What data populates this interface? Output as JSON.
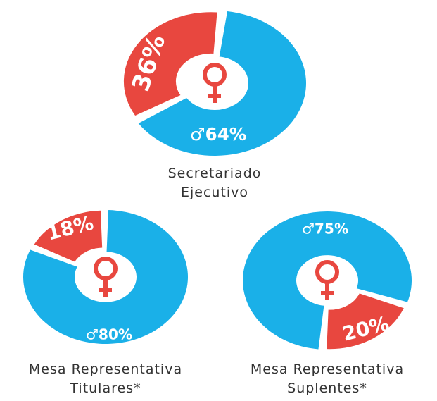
{
  "chart_data": [
    {
      "type": "pie",
      "title": [
        "Secretariado",
        "Ejecutivo"
      ],
      "values": [
        36,
        64
      ],
      "value_labels": [
        "36%",
        "♂64%"
      ],
      "colors": [
        "#e8473f",
        "#1ab0e8"
      ]
    },
    {
      "type": "pie",
      "title": [
        "Mesa Representativa",
        "Titulares*"
      ],
      "values": [
        18,
        80
      ],
      "value_labels": [
        "18%",
        "♂80%"
      ],
      "colors": [
        "#e8473f",
        "#1ab0e8"
      ]
    },
    {
      "type": "pie",
      "title": [
        "Mesa Representativa",
        "Suplentes*"
      ],
      "values": [
        20,
        75
      ],
      "value_labels": [
        "20%",
        "♂75%"
      ],
      "colors": [
        "#e8473f",
        "#1ab0e8"
      ]
    }
  ]
}
